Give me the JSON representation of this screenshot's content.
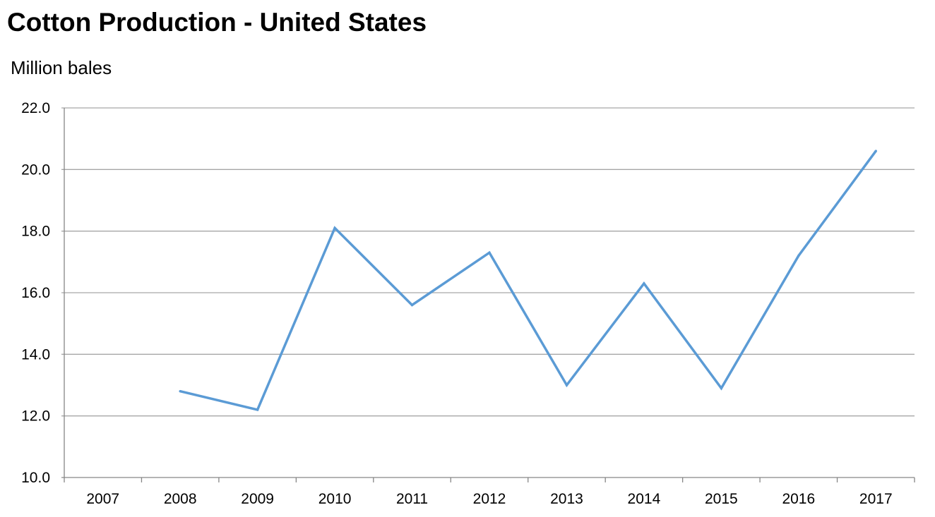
{
  "chart_data": {
    "type": "line",
    "title": "Cotton Production - United States",
    "ylabel": "Million bales",
    "xlabel": "",
    "categories": [
      "2007",
      "2008",
      "2009",
      "2010",
      "2011",
      "2012",
      "2013",
      "2014",
      "2015",
      "2016",
      "2017"
    ],
    "series": [
      {
        "values": [
          null,
          12.8,
          12.2,
          18.1,
          15.6,
          17.3,
          13.0,
          16.3,
          12.9,
          17.2,
          20.6
        ]
      }
    ],
    "ylim": [
      10.0,
      22.0
    ],
    "yticks": [
      "10.0",
      "12.0",
      "14.0",
      "16.0",
      "18.0",
      "20.0",
      "22.0"
    ],
    "grid": true,
    "legend": "none",
    "colors": {
      "line": "#5b9bd5",
      "grid": "#a6a6a6",
      "axis": "#868686"
    }
  }
}
